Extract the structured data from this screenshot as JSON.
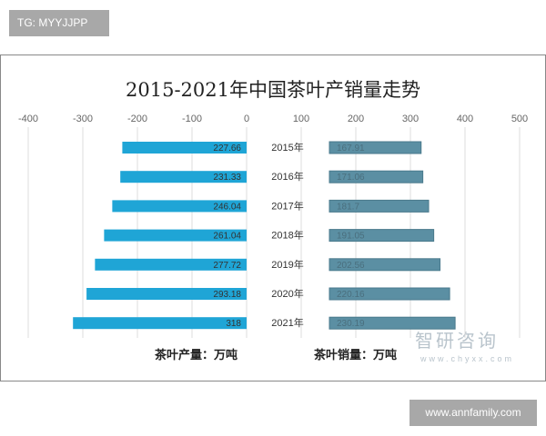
{
  "tag_label": "TG: MYYJJPP",
  "footer_label": "www.annfamily.com",
  "watermark": {
    "name": "智研咨询",
    "url": "www.chyxx.com"
  },
  "chart_data": {
    "type": "bar",
    "title": "2015-2021年中国茶叶产销量走势",
    "categories": [
      "2015年",
      "2016年",
      "2017年",
      "2018年",
      "2019年",
      "2020年",
      "2021年"
    ],
    "x_ticks": [
      "-400",
      "-300",
      "-200",
      "-100",
      "0",
      "100",
      "200",
      "300",
      "400",
      "500"
    ],
    "grid": true,
    "series": [
      {
        "name": "茶叶产量：万吨",
        "values": [
          227.66,
          231.33,
          246.04,
          261.04,
          277.72,
          293.18,
          318
        ],
        "labels": [
          "227.66",
          "231.33",
          "246.04",
          "261.04",
          "277.72",
          "293.18",
          "318"
        ],
        "color": "#1fa5d6"
      },
      {
        "name": "茶叶销量：万吨",
        "values": [
          167.91,
          171.06,
          181.7,
          191.05,
          202.56,
          220.16,
          230.19
        ],
        "labels": [
          "167.91",
          "171.06",
          "181.7",
          "191.05",
          "202.56",
          "220.16",
          "230.19"
        ],
        "color": "#5b8fa3"
      }
    ]
  }
}
